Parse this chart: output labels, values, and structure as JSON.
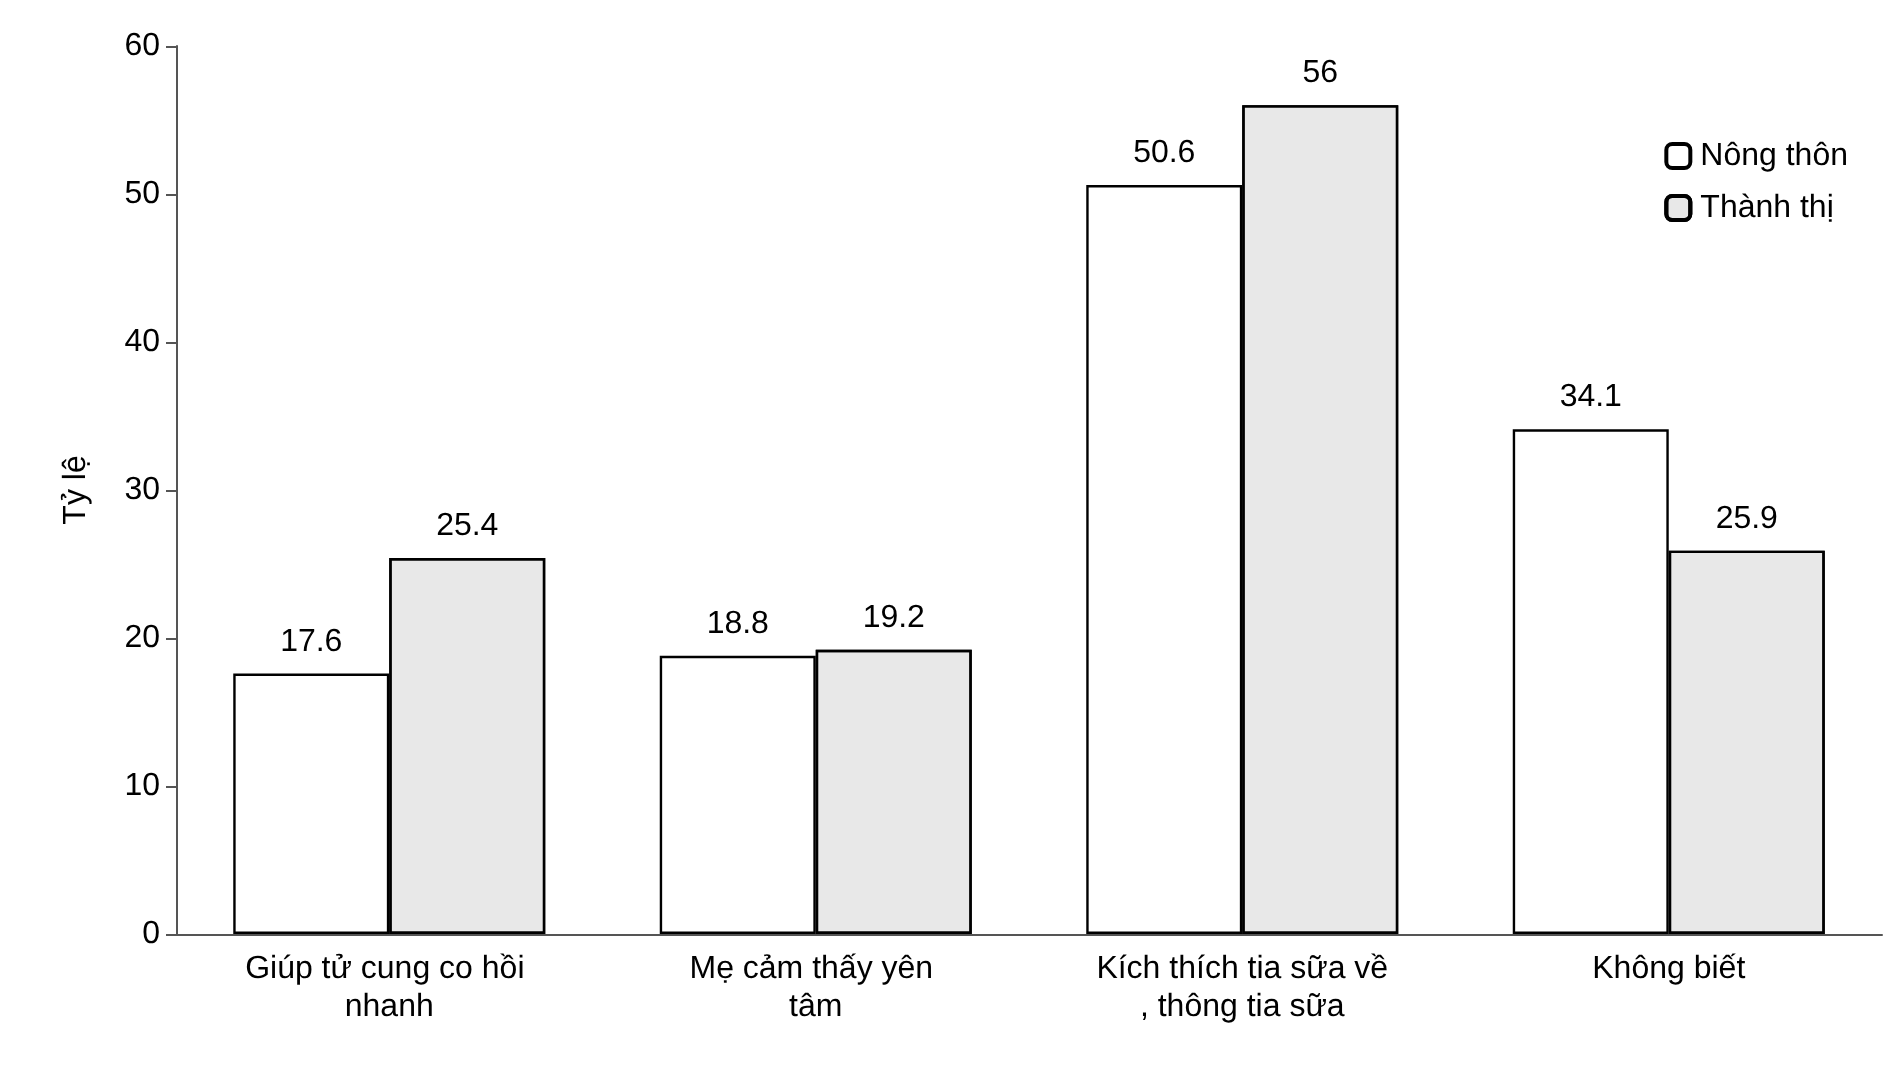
{
  "chart_data": {
    "type": "bar",
    "ylabel": "Tỷ lệ",
    "categories": [
      "Giúp tử cung co hồi nhanh",
      "Mẹ cảm thấy yên tâm",
      "Kích thích tia sữa về, thông tia sữa",
      "Không biết"
    ],
    "series": [
      {
        "name": "Nông thôn",
        "color": "#ffffff",
        "values": [
          17.6,
          18.8,
          50.6,
          34.1
        ]
      },
      {
        "name": "Thành thị",
        "color": "#e8e8e8",
        "values": [
          25.4,
          19.2,
          56,
          25.9
        ]
      }
    ],
    "ylim": [
      0,
      60
    ],
    "yticks": [
      0,
      10,
      20,
      30,
      40,
      50,
      60
    ],
    "grid": false,
    "legend": "top right",
    "data_labels": true
  }
}
